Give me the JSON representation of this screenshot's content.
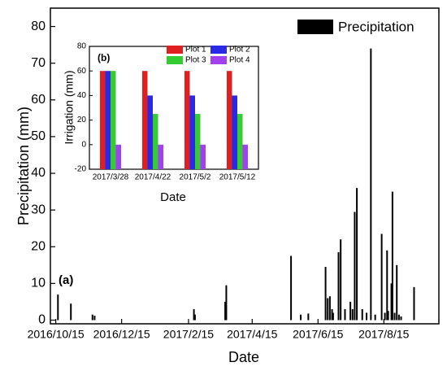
{
  "chart_data": [
    {
      "type": "bar",
      "xlabel": "Date",
      "ylabel": "Precipitation (mm)",
      "annotation": "(a)",
      "legend": "upper right",
      "x": [
        "2016/10/17",
        "2016/10/29",
        "2016/11/18",
        "2016/11/20",
        "2017/2/20",
        "2017/2/21",
        "2017/3/21",
        "2017/3/22",
        "2017/5/21",
        "2017/5/30",
        "2017/6/6",
        "2017/6/22",
        "2017/6/24",
        "2017/6/26",
        "2017/6/28",
        "2017/6/29",
        "2017/7/4",
        "2017/7/6",
        "2017/7/10",
        "2017/7/15",
        "2017/7/17",
        "2017/7/19",
        "2017/7/21",
        "2017/7/26",
        "2017/7/30",
        "2017/8/3",
        "2017/8/7",
        "2017/8/13",
        "2017/8/16",
        "2017/8/18",
        "2017/8/19",
        "2017/8/22",
        "2017/8/23",
        "2017/8/25",
        "2017/8/27",
        "2017/8/29",
        "2017/8/31",
        "2017/9/12"
      ],
      "series": [
        {
          "name": "Precipitation",
          "color": "#000000",
          "values": [
            7,
            4.5,
            1.5,
            1.2,
            3,
            1.5,
            5,
            9.5,
            17.5,
            1.5,
            1.8,
            14.5,
            6,
            6.5,
            3,
            2,
            18.5,
            22,
            3,
            5,
            3,
            29.5,
            36,
            3,
            2,
            74,
            1.5,
            23.5,
            2,
            19,
            2.5,
            10,
            35,
            2,
            15,
            1.5,
            1,
            9
          ]
        }
      ],
      "xlim": [
        "2016/10/10",
        "2017/10/5"
      ],
      "xticks": [
        "2016/10/15",
        "2016/12/15",
        "2017/2/15",
        "2017/4/15",
        "2017/6/15",
        "2017/8/15"
      ],
      "ylim": [
        -1,
        85
      ],
      "yticks": [
        0,
        10,
        20,
        30,
        40,
        50,
        60,
        70,
        80
      ]
    },
    {
      "type": "grouped_bar",
      "xlabel": "Date",
      "ylabel": "Irrigation (mm)",
      "annotation": "(b)",
      "categories": [
        "2017/3/28",
        "2017/4/22",
        "2017/5/2",
        "2017/5/12"
      ],
      "series": [
        {
          "name": "Plot 1",
          "color": "#e02020",
          "values": [
            60,
            60,
            60,
            60
          ]
        },
        {
          "name": "Plot 2",
          "color": "#2a2ae6",
          "values": [
            60,
            40,
            40,
            40
          ]
        },
        {
          "name": "Plot 3",
          "color": "#33cc33",
          "values": [
            60,
            25,
            25,
            25
          ]
        },
        {
          "name": "Plot 4",
          "color": "#a040f0",
          "values": [
            0,
            0,
            0,
            0
          ]
        }
      ],
      "ylim": [
        -20,
        80
      ],
      "yticks": [
        -20,
        0,
        20,
        40,
        60,
        80
      ]
    }
  ]
}
